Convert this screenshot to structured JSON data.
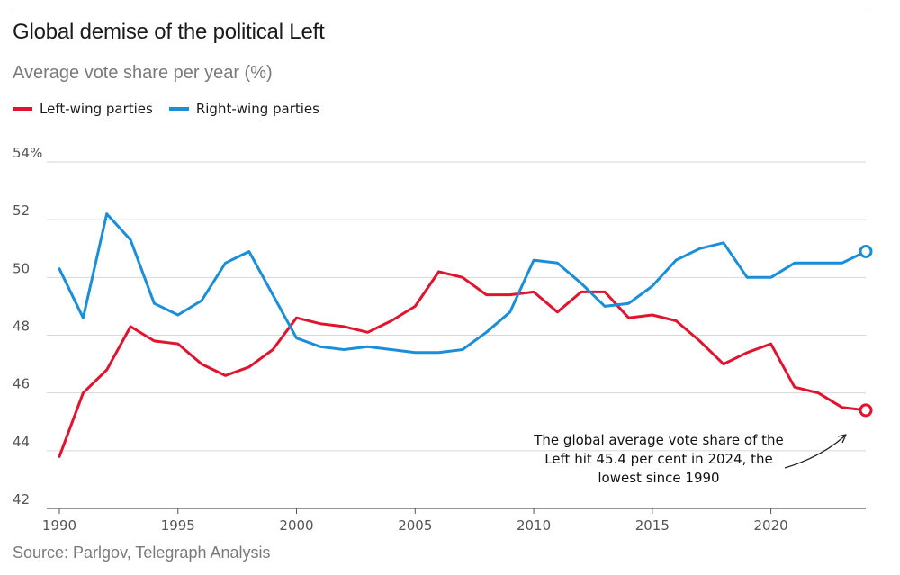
{
  "header": {
    "title": "Global demise of the political Left",
    "subtitle": "Average vote share per year (%)"
  },
  "legend": [
    {
      "label": "Left-wing parties",
      "color": "#e0142f"
    },
    {
      "label": "Right-wing parties",
      "color": "#1a8ed8"
    }
  ],
  "footer": {
    "source": "Source: Parlgov, Telegraph Analysis"
  },
  "chart_data": {
    "type": "line",
    "title": "Global demise of the political Left",
    "subtitle": "Average vote share per year (%)",
    "xlabel": "",
    "ylabel": "",
    "xlim": [
      1990,
      2024
    ],
    "ylim": [
      42,
      54
    ],
    "x_ticks": [
      1990,
      1995,
      2000,
      2005,
      2010,
      2015,
      2020
    ],
    "y_ticks": [
      42,
      44,
      46,
      48,
      50,
      52,
      54
    ],
    "y_tick_labels": [
      "42",
      "44",
      "46",
      "48",
      "50",
      "52",
      "54%"
    ],
    "grid": true,
    "x": [
      1990,
      1991,
      1992,
      1993,
      1994,
      1995,
      1996,
      1997,
      1998,
      1999,
      2000,
      2001,
      2002,
      2003,
      2004,
      2005,
      2006,
      2007,
      2008,
      2009,
      2010,
      2011,
      2012,
      2013,
      2014,
      2015,
      2016,
      2017,
      2018,
      2019,
      2020,
      2021,
      2022,
      2023,
      2024
    ],
    "series": [
      {
        "name": "Left-wing parties",
        "color": "#e0142f",
        "values": [
          43.8,
          46.0,
          46.8,
          48.3,
          47.8,
          47.7,
          47.0,
          46.6,
          46.9,
          47.5,
          48.6,
          48.4,
          48.3,
          48.1,
          48.5,
          49.0,
          50.2,
          50.0,
          49.4,
          49.4,
          49.5,
          48.8,
          49.5,
          49.5,
          48.6,
          48.7,
          48.5,
          47.8,
          47.0,
          47.4,
          47.7,
          46.2,
          46.0,
          45.5,
          45.4
        ]
      },
      {
        "name": "Right-wing parties",
        "color": "#1a8ed8",
        "values": [
          50.3,
          48.6,
          52.2,
          51.3,
          49.1,
          48.7,
          49.2,
          50.5,
          50.9,
          49.4,
          47.9,
          47.6,
          47.5,
          47.6,
          47.5,
          47.4,
          47.4,
          47.5,
          48.1,
          48.8,
          50.6,
          50.5,
          49.8,
          49.0,
          49.1,
          49.7,
          50.6,
          51.0,
          51.2,
          50.0,
          50.0,
          50.5,
          50.5,
          50.5,
          50.9
        ]
      }
    ],
    "annotation": {
      "lines": [
        "The global average vote share of the",
        "Left hit 45.4 per cent in 2024, the",
        "lowest since 1990"
      ]
    }
  }
}
